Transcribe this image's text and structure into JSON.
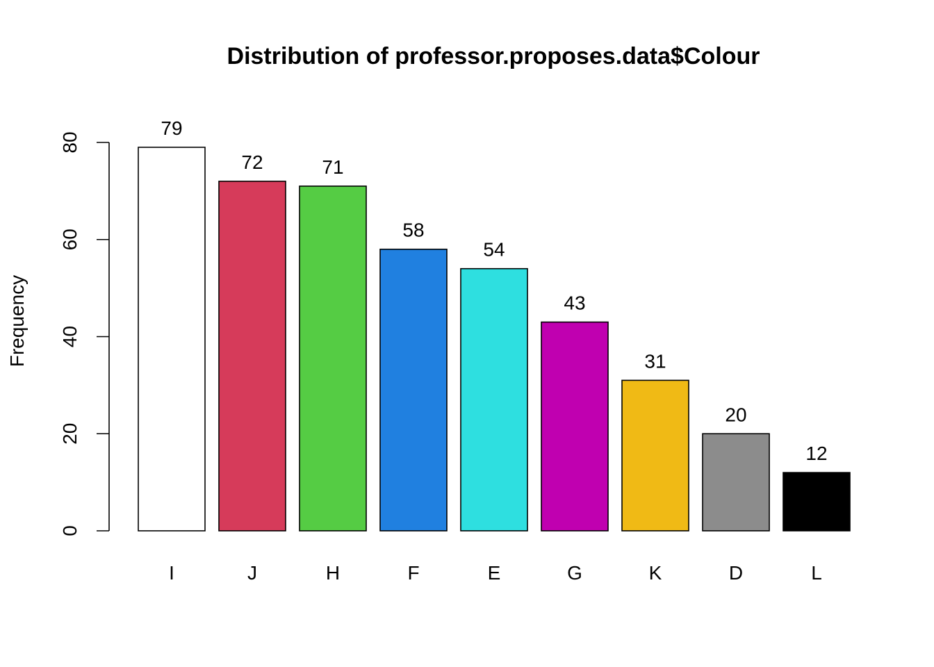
{
  "chart_data": {
    "type": "bar",
    "title": "Distribution of professor.proposes.data$Colour",
    "xlabel": "",
    "ylabel": "Frequency",
    "ylim": [
      0,
      80
    ],
    "yticks": [
      0,
      20,
      40,
      60,
      80
    ],
    "categories": [
      "I",
      "J",
      "H",
      "F",
      "E",
      "G",
      "K",
      "D",
      "L"
    ],
    "values": [
      79,
      72,
      71,
      58,
      54,
      43,
      31,
      20,
      12
    ],
    "colors": [
      "#FFFFFF",
      "#D63B5A",
      "#55CC44",
      "#2080E0",
      "#2EDFE0",
      "#C000B0",
      "#F0BA15",
      "#8C8C8C",
      "#000000"
    ],
    "data_labels": [
      "79",
      "72",
      "71",
      "58",
      "54",
      "43",
      "31",
      "20",
      "12"
    ],
    "grid": false,
    "legend": "none"
  }
}
